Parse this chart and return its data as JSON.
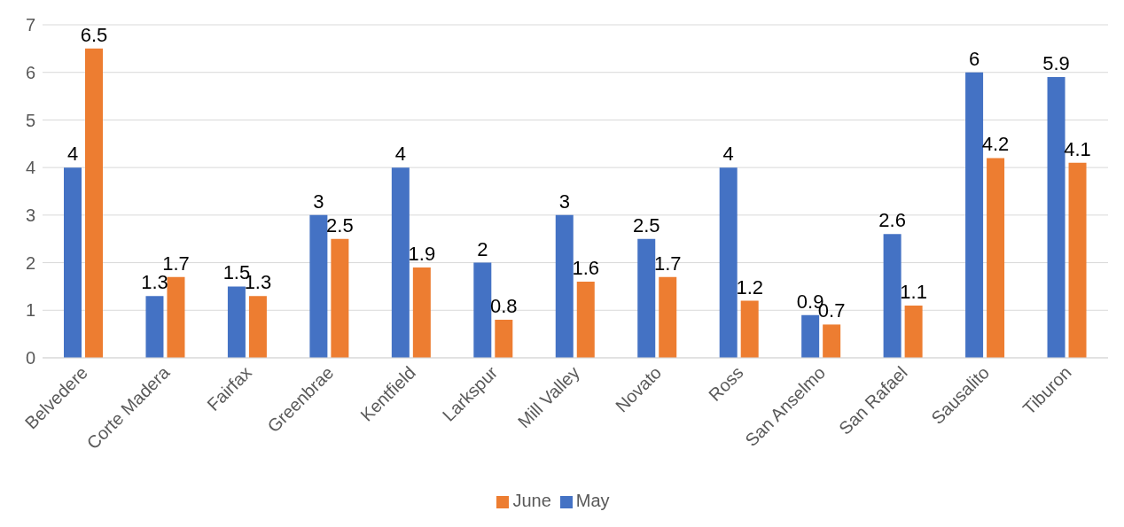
{
  "chart_data": {
    "type": "bar",
    "categories": [
      "Belvedere",
      "Corte Madera",
      "Fairfax",
      "Greenbrae",
      "Kentfield",
      "Larkspur",
      "Mill Valley",
      "Novato",
      "Ross",
      "San Anselmo",
      "San Rafael",
      "Sausalito",
      "Tiburon"
    ],
    "series": [
      {
        "name": "May",
        "color": "#4472c4",
        "values": [
          4,
          1.3,
          1.5,
          3,
          4,
          2,
          3,
          2.5,
          4,
          0.9,
          2.6,
          6,
          5.9
        ]
      },
      {
        "name": "June",
        "color": "#ed7d31",
        "values": [
          6.5,
          1.7,
          1.3,
          2.5,
          1.9,
          0.8,
          1.6,
          1.7,
          1.2,
          0.7,
          1.1,
          4.2,
          4.1
        ]
      }
    ],
    "ylim": [
      0,
      7
    ],
    "yticks": [
      0,
      1,
      2,
      3,
      4,
      5,
      6,
      7
    ],
    "grid": "y",
    "legend": "bottom",
    "data_labels": true
  }
}
